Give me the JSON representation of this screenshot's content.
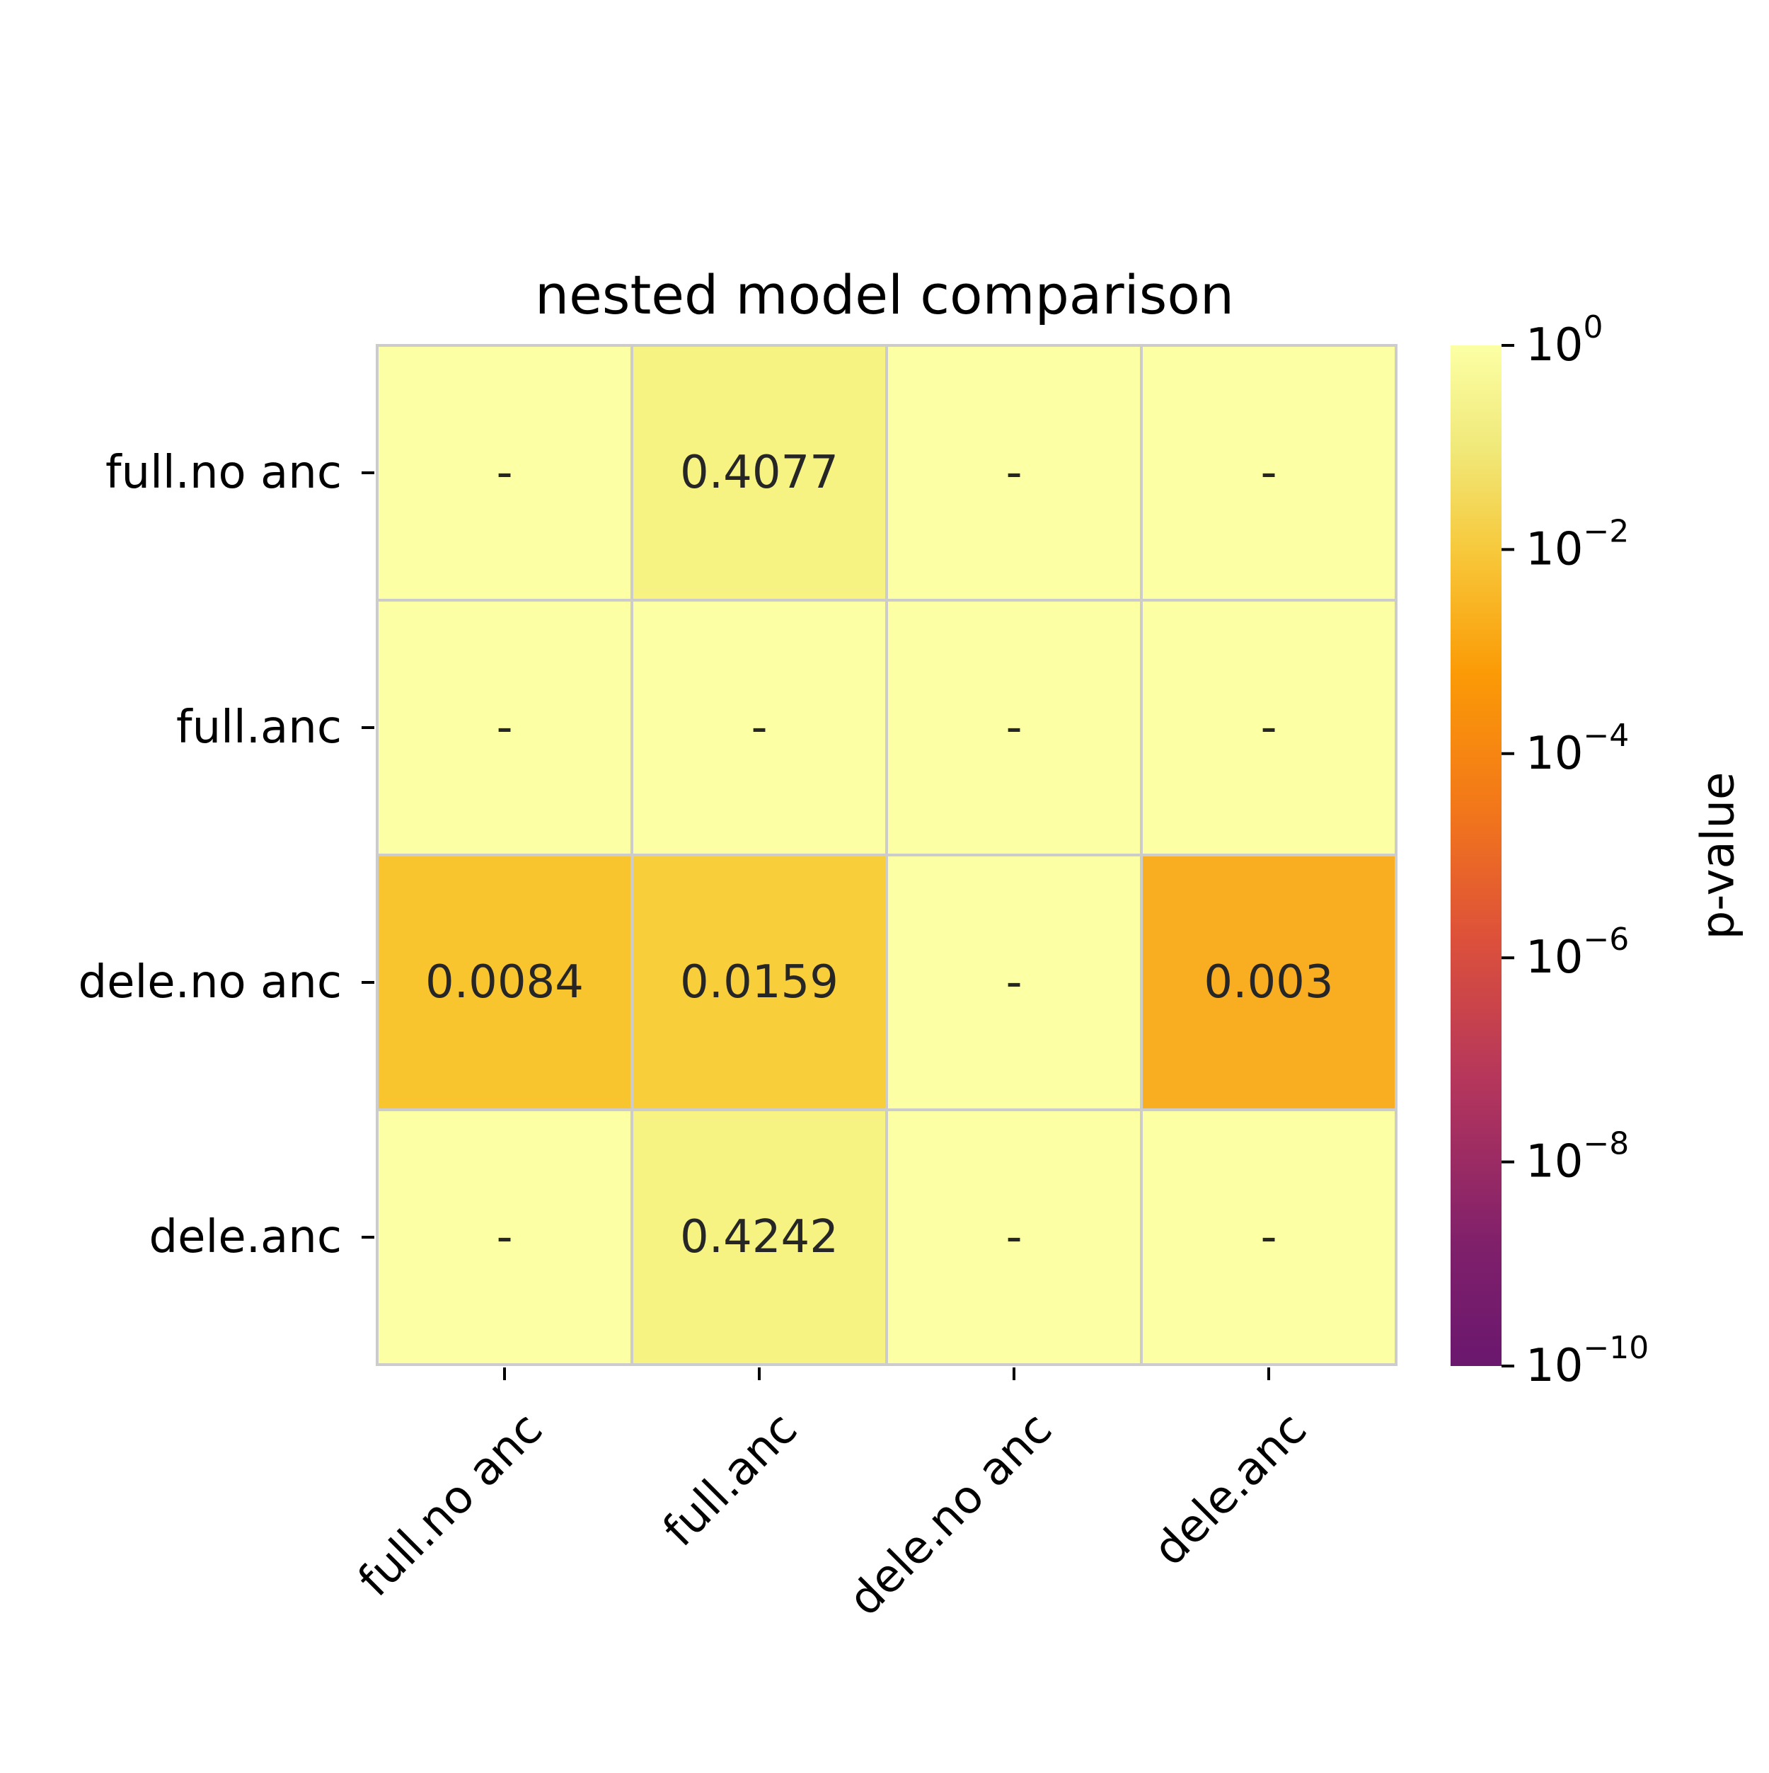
{
  "chart_data": {
    "type": "heatmap",
    "title": "nested model comparison",
    "row_labels": [
      "full.no anc",
      "full.anc",
      "dele.no anc",
      "dele.anc"
    ],
    "col_labels": [
      "full.no anc",
      "full.anc",
      "dele.no anc",
      "dele.anc"
    ],
    "values": [
      [
        null,
        0.4077,
        null,
        null
      ],
      [
        null,
        null,
        null,
        null
      ],
      [
        0.0084,
        0.0159,
        null,
        0.003
      ],
      [
        null,
        0.4242,
        null,
        null
      ]
    ],
    "cell_text": [
      [
        "-",
        "0.4077",
        "-",
        "-"
      ],
      [
        "-",
        "-",
        "-",
        "-"
      ],
      [
        "0.0084",
        "0.0159",
        "-",
        "0.003"
      ],
      [
        "-",
        "0.4242",
        "-",
        "-"
      ]
    ],
    "empty_cell_value": 1,
    "colormap": "inferno",
    "color_scale": "log",
    "colorbar": {
      "label": "p-value",
      "range": [
        1e-10,
        1
      ],
      "ticks": [
        {
          "value": 1,
          "base": "10",
          "exp": "0"
        },
        {
          "value": 0.01,
          "base": "10",
          "exp": "−2"
        },
        {
          "value": 0.0001,
          "base": "10",
          "exp": "−4"
        },
        {
          "value": 1e-06,
          "base": "10",
          "exp": "−6"
        },
        {
          "value": 1e-08,
          "base": "10",
          "exp": "−8"
        },
        {
          "value": 1e-10,
          "base": "10",
          "exp": "−10"
        }
      ]
    },
    "grid_line_color": "#cccccc"
  }
}
